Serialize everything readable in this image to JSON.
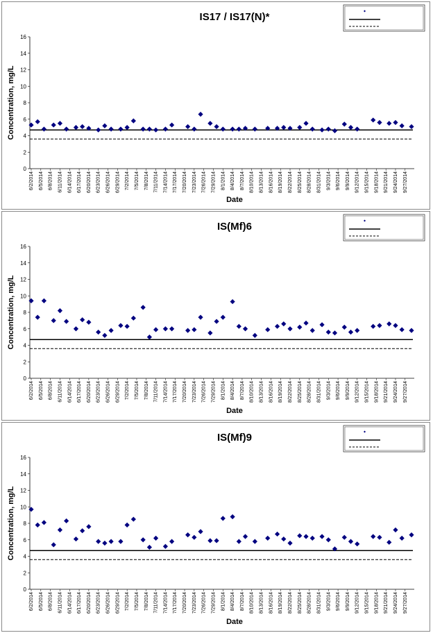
{
  "chart_data": [
    {
      "type": "scatter",
      "title": "IS17 / IS17(N)*",
      "xlabel": "Date",
      "ylabel": "Concentration, mg/L",
      "ylim": [
        0,
        16
      ],
      "yticks": [
        "0",
        "2",
        "4",
        "6",
        "8",
        "10",
        "12",
        "14",
        "16"
      ],
      "xlim": [
        "6/2/2014",
        "9/29/2014"
      ],
      "xtick_labels": [
        "6/2/2014",
        "6/5/2014",
        "6/8/2014",
        "6/11/2014",
        "6/14/2014",
        "6/17/2014",
        "6/20/2014",
        "6/23/2014",
        "6/26/2014",
        "6/29/2014",
        "7/2/2014",
        "7/5/2014",
        "7/8/2014",
        "7/11/2014",
        "7/14/2014",
        "7/17/2014",
        "7/20/2014",
        "7/23/2014",
        "7/26/2014",
        "7/29/2014",
        "8/1/2014",
        "8/4/2014",
        "8/7/2014",
        "8/10/2014",
        "8/13/2014",
        "8/16/2014",
        "8/19/2014",
        "8/22/2014",
        "8/25/2014",
        "8/28/2014",
        "8/31/2014",
        "9/3/2014",
        "9/6/2014",
        "9/9/2014",
        "9/12/2014",
        "9/15/2014",
        "9/18/2014",
        "9/21/2014",
        "9/24/2014",
        "9/27/2014"
      ],
      "series": [
        {
          "color": "#000080",
          "marker": "diamond",
          "points": [
            [
              "6/2/2014",
              5.3
            ],
            [
              "6/4/2014",
              5.7
            ],
            [
              "6/6/2014",
              4.8
            ],
            [
              "6/9/2014",
              5.3
            ],
            [
              "6/11/2014",
              5.5
            ],
            [
              "6/13/2014",
              4.8
            ],
            [
              "6/16/2014",
              5.0
            ],
            [
              "6/18/2014",
              5.1
            ],
            [
              "6/20/2014",
              4.9
            ],
            [
              "6/23/2014",
              4.7
            ],
            [
              "6/25/2014",
              5.2
            ],
            [
              "6/27/2014",
              4.8
            ],
            [
              "6/30/2014",
              4.8
            ],
            [
              "7/2/2014",
              5.0
            ],
            [
              "7/4/2014",
              5.8
            ],
            [
              "7/7/2014",
              4.8
            ],
            [
              "7/9/2014",
              4.8
            ],
            [
              "7/11/2014",
              4.7
            ],
            [
              "7/14/2014",
              4.8
            ],
            [
              "7/16/2014",
              5.3
            ],
            [
              "7/21/2014",
              5.1
            ],
            [
              "7/23/2014",
              4.8
            ],
            [
              "7/25/2014",
              6.6
            ],
            [
              "7/28/2014",
              5.5
            ],
            [
              "7/30/2014",
              5.1
            ],
            [
              "8/1/2014",
              4.8
            ],
            [
              "8/4/2014",
              4.8
            ],
            [
              "8/6/2014",
              4.8
            ],
            [
              "8/8/2014",
              4.9
            ],
            [
              "8/11/2014",
              4.8
            ],
            [
              "8/15/2014",
              4.9
            ],
            [
              "8/18/2014",
              4.9
            ],
            [
              "8/20/2014",
              5.0
            ],
            [
              "8/22/2014",
              4.9
            ],
            [
              "8/25/2014",
              5.0
            ],
            [
              "8/27/2014",
              5.5
            ],
            [
              "8/29/2014",
              4.8
            ],
            [
              "9/1/2014",
              4.7
            ],
            [
              "9/3/2014",
              4.8
            ],
            [
              "9/5/2014",
              4.6
            ],
            [
              "9/8/2014",
              5.4
            ],
            [
              "9/10/2014",
              5.0
            ],
            [
              "9/12/2014",
              4.8
            ],
            [
              "9/17/2014",
              5.9
            ],
            [
              "9/19/2014",
              5.6
            ],
            [
              "9/22/2014",
              5.5
            ],
            [
              "9/24/2014",
              5.6
            ],
            [
              "9/26/2014",
              5.2
            ],
            [
              "9/29/2014",
              5.1
            ]
          ]
        }
      ],
      "reference_lines": [
        {
          "style": "solid",
          "y": 4.7
        },
        {
          "style": "dashed",
          "y": 3.6
        }
      ],
      "legend": "top-right",
      "grid": false
    },
    {
      "type": "scatter",
      "title": "IS(Mf)6",
      "xlabel": "Date",
      "ylabel": "Concentration, mg/L",
      "ylim": [
        0,
        16
      ],
      "yticks": [
        "0",
        "2",
        "4",
        "6",
        "8",
        "10",
        "12",
        "14",
        "16"
      ],
      "xlim": [
        "6/2/2014",
        "9/29/2014"
      ],
      "xtick_labels": [
        "6/2/2014",
        "6/5/2014",
        "6/8/2014",
        "6/11/2014",
        "6/14/2014",
        "6/17/2014",
        "6/20/2014",
        "6/23/2014",
        "6/26/2014",
        "6/29/2014",
        "7/2/2014",
        "7/5/2014",
        "7/8/2014",
        "7/11/2014",
        "7/14/2014",
        "7/17/2014",
        "7/20/2014",
        "7/23/2014",
        "7/26/2014",
        "7/29/2014",
        "8/1/2014",
        "8/4/2014",
        "8/7/2014",
        "8/10/2014",
        "8/13/2014",
        "8/16/2014",
        "8/19/2014",
        "8/22/2014",
        "8/25/2014",
        "8/28/2014",
        "8/31/2014",
        "9/3/2014",
        "9/6/2014",
        "9/9/2014",
        "9/12/2014",
        "9/15/2014",
        "9/18/2014",
        "9/21/2014",
        "9/24/2014",
        "9/27/2014"
      ],
      "series": [
        {
          "color": "#000080",
          "marker": "diamond",
          "points": [
            [
              "6/2/2014",
              9.4
            ],
            [
              "6/4/2014",
              7.4
            ],
            [
              "6/6/2014",
              9.4
            ],
            [
              "6/9/2014",
              7.0
            ],
            [
              "6/11/2014",
              8.2
            ],
            [
              "6/13/2014",
              6.9
            ],
            [
              "6/16/2014",
              6.0
            ],
            [
              "6/18/2014",
              7.1
            ],
            [
              "6/20/2014",
              6.8
            ],
            [
              "6/23/2014",
              5.6
            ],
            [
              "6/25/2014",
              5.2
            ],
            [
              "6/27/2014",
              5.8
            ],
            [
              "6/30/2014",
              6.4
            ],
            [
              "7/2/2014",
              6.3
            ],
            [
              "7/4/2014",
              7.3
            ],
            [
              "7/7/2014",
              8.6
            ],
            [
              "7/9/2014",
              5.0
            ],
            [
              "7/11/2014",
              5.9
            ],
            [
              "7/14/2014",
              6.0
            ],
            [
              "7/16/2014",
              6.0
            ],
            [
              "7/21/2014",
              5.8
            ],
            [
              "7/23/2014",
              5.9
            ],
            [
              "7/25/2014",
              7.4
            ],
            [
              "7/28/2014",
              5.5
            ],
            [
              "7/30/2014",
              6.9
            ],
            [
              "8/1/2014",
              7.4
            ],
            [
              "8/4/2014",
              9.3
            ],
            [
              "8/6/2014",
              6.3
            ],
            [
              "8/8/2014",
              6.0
            ],
            [
              "8/11/2014",
              5.2
            ],
            [
              "8/15/2014",
              5.9
            ],
            [
              "8/18/2014",
              6.3
            ],
            [
              "8/20/2014",
              6.6
            ],
            [
              "8/22/2014",
              6.0
            ],
            [
              "8/25/2014",
              6.2
            ],
            [
              "8/27/2014",
              6.7
            ],
            [
              "8/29/2014",
              5.8
            ],
            [
              "9/1/2014",
              6.5
            ],
            [
              "9/3/2014",
              5.6
            ],
            [
              "9/5/2014",
              5.5
            ],
            [
              "9/8/2014",
              6.2
            ],
            [
              "9/10/2014",
              5.6
            ],
            [
              "9/12/2014",
              5.8
            ],
            [
              "9/17/2014",
              6.3
            ],
            [
              "9/19/2014",
              6.4
            ],
            [
              "9/22/2014",
              6.6
            ],
            [
              "9/24/2014",
              6.4
            ],
            [
              "9/26/2014",
              5.9
            ],
            [
              "9/29/2014",
              5.8
            ]
          ]
        }
      ],
      "reference_lines": [
        {
          "style": "solid",
          "y": 4.7
        },
        {
          "style": "dashed",
          "y": 3.6
        }
      ],
      "legend": "top-right",
      "grid": false
    },
    {
      "type": "scatter",
      "title": "IS(Mf)9",
      "xlabel": "Date",
      "ylabel": "Concentration, mg/L",
      "ylim": [
        0,
        16
      ],
      "yticks": [
        "0",
        "2",
        "4",
        "6",
        "8",
        "10",
        "12",
        "14",
        "16"
      ],
      "xlim": [
        "6/2/2014",
        "9/29/2014"
      ],
      "xtick_labels": [
        "6/2/2014",
        "6/5/2014",
        "6/8/2014",
        "6/11/2014",
        "6/14/2014",
        "6/17/2014",
        "6/20/2014",
        "6/23/2014",
        "6/26/2014",
        "6/29/2014",
        "7/2/2014",
        "7/5/2014",
        "7/8/2014",
        "7/11/2014",
        "7/14/2014",
        "7/17/2014",
        "7/20/2014",
        "7/23/2014",
        "7/26/2014",
        "7/29/2014",
        "8/1/2014",
        "8/4/2014",
        "8/7/2014",
        "8/10/2014",
        "8/13/2014",
        "8/16/2014",
        "8/19/2014",
        "8/22/2014",
        "8/25/2014",
        "8/28/2014",
        "8/31/2014",
        "9/3/2014",
        "9/6/2014",
        "9/9/2014",
        "9/12/2014",
        "9/15/2014",
        "9/18/2014",
        "9/21/2014",
        "9/24/2014",
        "9/27/2014"
      ],
      "series": [
        {
          "color": "#000080",
          "marker": "diamond",
          "points": [
            [
              "6/2/2014",
              9.7
            ],
            [
              "6/4/2014",
              7.8
            ],
            [
              "6/6/2014",
              8.1
            ],
            [
              "6/9/2014",
              5.4
            ],
            [
              "6/11/2014",
              7.2
            ],
            [
              "6/13/2014",
              8.3
            ],
            [
              "6/16/2014",
              6.1
            ],
            [
              "6/18/2014",
              7.1
            ],
            [
              "6/20/2014",
              7.6
            ],
            [
              "6/23/2014",
              5.8
            ],
            [
              "6/25/2014",
              5.6
            ],
            [
              "6/27/2014",
              5.8
            ],
            [
              "6/30/2014",
              5.8
            ],
            [
              "7/2/2014",
              7.8
            ],
            [
              "7/4/2014",
              8.5
            ],
            [
              "7/7/2014",
              6.0
            ],
            [
              "7/9/2014",
              5.1
            ],
            [
              "7/11/2014",
              6.2
            ],
            [
              "7/14/2014",
              5.2
            ],
            [
              "7/16/2014",
              5.8
            ],
            [
              "7/21/2014",
              6.6
            ],
            [
              "7/23/2014",
              6.3
            ],
            [
              "7/25/2014",
              7.0
            ],
            [
              "7/28/2014",
              5.9
            ],
            [
              "7/30/2014",
              5.9
            ],
            [
              "8/1/2014",
              8.6
            ],
            [
              "8/4/2014",
              8.8
            ],
            [
              "8/6/2014",
              5.8
            ],
            [
              "8/8/2014",
              6.4
            ],
            [
              "8/11/2014",
              5.8
            ],
            [
              "8/15/2014",
              6.2
            ],
            [
              "8/18/2014",
              6.7
            ],
            [
              "8/20/2014",
              6.1
            ],
            [
              "8/22/2014",
              5.6
            ],
            [
              "8/25/2014",
              6.5
            ],
            [
              "8/27/2014",
              6.4
            ],
            [
              "8/29/2014",
              6.2
            ],
            [
              "9/1/2014",
              6.4
            ],
            [
              "9/3/2014",
              6.0
            ],
            [
              "9/5/2014",
              4.9
            ],
            [
              "9/8/2014",
              6.3
            ],
            [
              "9/10/2014",
              5.8
            ],
            [
              "9/12/2014",
              5.5
            ],
            [
              "9/17/2014",
              6.4
            ],
            [
              "9/19/2014",
              6.3
            ],
            [
              "9/22/2014",
              5.7
            ],
            [
              "9/24/2014",
              7.2
            ],
            [
              "9/26/2014",
              6.2
            ],
            [
              "9/29/2014",
              6.6
            ]
          ]
        }
      ],
      "reference_lines": [
        {
          "style": "solid",
          "y": 4.7
        },
        {
          "style": "dashed",
          "y": 3.6
        }
      ],
      "legend": "top-right",
      "grid": false
    }
  ]
}
